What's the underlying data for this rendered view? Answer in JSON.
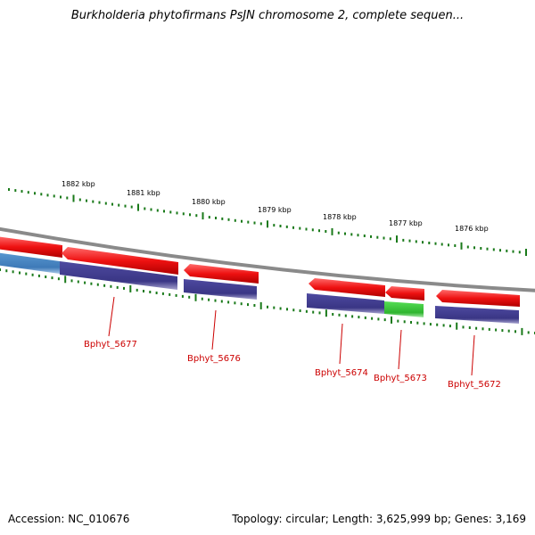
{
  "title": "Burkholderia phytofirmans PsJN chromosome 2, complete sequen...",
  "footer": {
    "accession": "Accession: NC_010676",
    "summary": "Topology: circular; Length: 3,625,999 bp; Genes: 3,169"
  },
  "scale_labels": [
    "1882 kbp",
    "1881 kbp",
    "1880 kbp",
    "1879 kbp",
    "1878 kbp",
    "1877 kbp",
    "1876 kbp"
  ],
  "genes": [
    {
      "label": "Bphyt_5677"
    },
    {
      "label": "Bphyt_5676"
    },
    {
      "label": "Bphyt_5674"
    },
    {
      "label": "Bphyt_5673"
    },
    {
      "label": "Bphyt_5672"
    }
  ],
  "colors": {
    "backbone": "#8a8a8a",
    "gene_red": "#ee1111",
    "cds_purple": "#3d3a8a",
    "cds_blue": "#4a86c0",
    "cds_green": "#33bb33",
    "tick_green": "#1a7a1a",
    "label_red": "#cc0000"
  }
}
